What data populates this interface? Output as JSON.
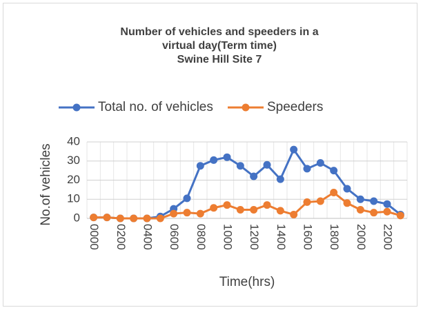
{
  "chart_data": {
    "type": "line",
    "title": [
      "Number of vehicles and speeders in a",
      "virtual day(Term time)",
      "Swine Hill Site 7"
    ],
    "x_label": "Time(hrs)",
    "y_label": "No.of vehicles",
    "categories": [
      "0000",
      null,
      "0200",
      null,
      "0400",
      null,
      "0600",
      null,
      "0800",
      null,
      "1000",
      null,
      "1200",
      null,
      "1400",
      null,
      "1600",
      null,
      "1800",
      null,
      "2000",
      null,
      "2200",
      null
    ],
    "series": [
      {
        "name": "Total no. of vehicles",
        "color": "#4472c4",
        "values": [
          0.5,
          0.5,
          0,
          0,
          0,
          1,
          5,
          10.5,
          27.5,
          30.5,
          32,
          27.5,
          22,
          28,
          20.5,
          36,
          26,
          29,
          25,
          15.5,
          10,
          9,
          7.5,
          2
        ]
      },
      {
        "name": "Speeders",
        "color": "#ed7d31",
        "values": [
          0.5,
          0.5,
          0,
          0,
          0,
          0,
          2.5,
          3,
          2.5,
          5.5,
          7,
          4.5,
          4.5,
          7,
          4,
          2,
          8.5,
          9,
          13.5,
          8,
          4.5,
          3,
          3.5,
          1.5
        ]
      }
    ],
    "ylim": [
      0,
      40
    ],
    "yticks": [
      0,
      10,
      20,
      30,
      40
    ],
    "grid": true,
    "legend": "top"
  }
}
